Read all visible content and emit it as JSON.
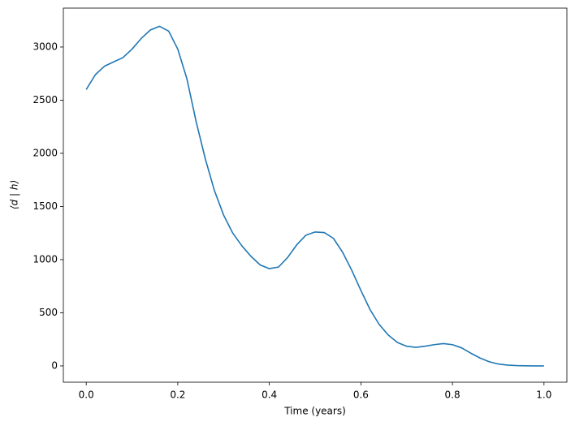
{
  "chart_data": {
    "type": "line",
    "xlabel": "Time (years)",
    "ylabel": "⟨d | h⟩",
    "x": [
      0.0,
      0.02,
      0.04,
      0.06,
      0.08,
      0.1,
      0.12,
      0.14,
      0.16,
      0.18,
      0.2,
      0.22,
      0.24,
      0.26,
      0.28,
      0.3,
      0.32,
      0.34,
      0.36,
      0.38,
      0.4,
      0.42,
      0.44,
      0.46,
      0.48,
      0.5,
      0.52,
      0.54,
      0.56,
      0.58,
      0.6,
      0.62,
      0.64,
      0.66,
      0.68,
      0.7,
      0.72,
      0.74,
      0.76,
      0.78,
      0.8,
      0.82,
      0.84,
      0.86,
      0.88,
      0.9,
      0.92,
      0.94,
      0.96,
      0.98,
      1.0
    ],
    "series": [
      {
        "color": "#1f77b4",
        "values": [
          2600,
          2740,
          2820,
          2860,
          2900,
          2980,
          3080,
          3160,
          3195,
          3150,
          2980,
          2700,
          2300,
          1950,
          1650,
          1420,
          1250,
          1130,
          1030,
          950,
          915,
          930,
          1020,
          1140,
          1230,
          1260,
          1255,
          1200,
          1070,
          900,
          710,
          530,
          390,
          290,
          220,
          185,
          175,
          185,
          200,
          210,
          200,
          170,
          120,
          75,
          40,
          18,
          8,
          3,
          1,
          0,
          0
        ]
      }
    ],
    "xlim": [
      -0.05,
      1.05
    ],
    "ylim": [
      -153,
      3366
    ],
    "xticks": [
      {
        "value": 0,
        "label": "0.0"
      },
      0.2,
      0.4,
      0.6,
      0.8,
      {
        "value": 1,
        "label": "1.0"
      }
    ],
    "yticks": [
      0,
      500,
      1000,
      1500,
      2000,
      2500,
      3000
    ]
  }
}
